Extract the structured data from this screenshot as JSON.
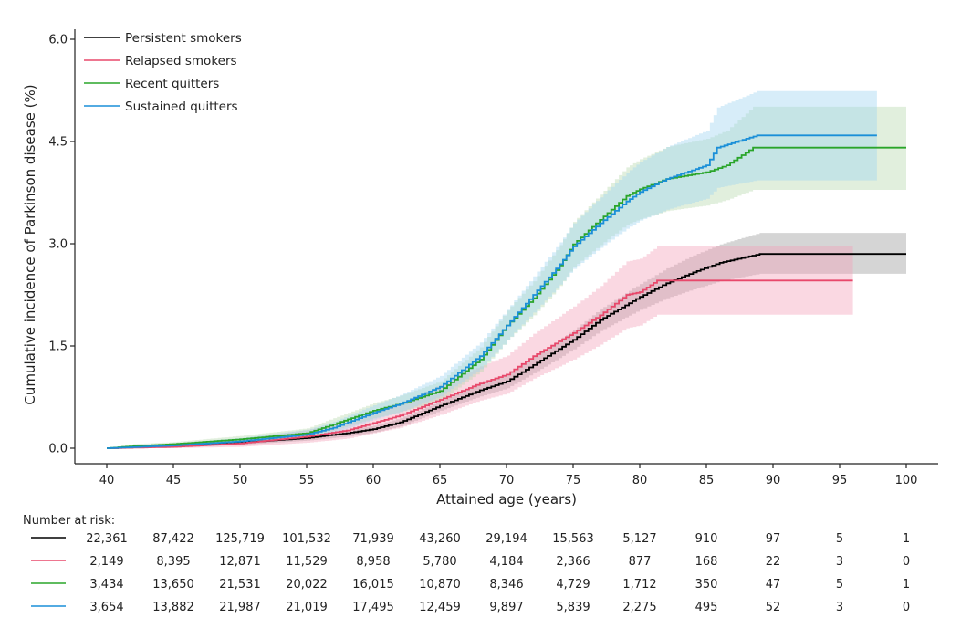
{
  "chart_data": {
    "type": "line",
    "subtype": "cumulative-incidence-step",
    "title": "",
    "xlabel": "Attained age (years)",
    "ylabel": "Cumulative incidence of Parkinson disease (%)",
    "xlim": [
      40,
      100
    ],
    "ylim": [
      0,
      6.0
    ],
    "xticks": [
      40,
      45,
      50,
      55,
      60,
      65,
      70,
      75,
      80,
      85,
      90,
      95,
      100
    ],
    "yticks": [
      0.0,
      1.5,
      3.0,
      4.5,
      6.0
    ],
    "ytick_labels": [
      "0.0",
      "1.5",
      "3.0",
      "4.5",
      "6.0"
    ],
    "grid": false,
    "legend_position": "top-left",
    "series": [
      {
        "name": "Persistent smokers",
        "color": "#000000",
        "band_color": "#9a9a9a",
        "x": [
          40,
          45,
          50,
          55,
          58,
          60,
          62,
          65,
          68,
          70,
          72,
          75,
          77,
          80,
          82,
          84,
          86,
          89,
          100
        ],
        "y": [
          0.0,
          0.03,
          0.08,
          0.15,
          0.22,
          0.28,
          0.38,
          0.62,
          0.85,
          0.98,
          1.22,
          1.59,
          1.88,
          2.22,
          2.42,
          2.58,
          2.72,
          2.85,
          2.85
        ],
        "lower": [
          0.0,
          0.01,
          0.05,
          0.11,
          0.17,
          0.23,
          0.32,
          0.55,
          0.76,
          0.88,
          1.1,
          1.45,
          1.72,
          2.03,
          2.2,
          2.33,
          2.45,
          2.56,
          2.56
        ],
        "upper": [
          0.0,
          0.05,
          0.11,
          0.19,
          0.27,
          0.33,
          0.44,
          0.69,
          0.94,
          1.08,
          1.34,
          1.73,
          2.04,
          2.41,
          2.64,
          2.83,
          2.99,
          3.16,
          3.16
        ]
      },
      {
        "name": "Relapsed smokers",
        "color": "#e8486b",
        "band_color": "#f4a3bb",
        "x": [
          40,
          45,
          50,
          55,
          58,
          60,
          62,
          65,
          68,
          70,
          72,
          75,
          77,
          79,
          80,
          81.3,
          96
        ],
        "y": [
          0.0,
          0.02,
          0.07,
          0.17,
          0.26,
          0.37,
          0.48,
          0.71,
          0.95,
          1.08,
          1.35,
          1.69,
          1.95,
          2.25,
          2.29,
          2.46,
          2.46
        ],
        "lower": [
          0.0,
          0.0,
          0.02,
          0.08,
          0.14,
          0.22,
          0.3,
          0.49,
          0.7,
          0.8,
          1.02,
          1.3,
          1.52,
          1.76,
          1.8,
          1.96,
          1.96
        ],
        "upper": [
          0.0,
          0.05,
          0.13,
          0.27,
          0.38,
          0.52,
          0.66,
          0.93,
          1.2,
          1.36,
          1.68,
          2.08,
          2.38,
          2.74,
          2.78,
          2.96,
          2.96
        ]
      },
      {
        "name": "Recent quitters",
        "color": "#2aa52a",
        "band_color": "#b7d8ad",
        "x": [
          40,
          42,
          45,
          50,
          55,
          57,
          60,
          62,
          65,
          68,
          70,
          72,
          74,
          75,
          77,
          79,
          80,
          82,
          85,
          86.5,
          88.5,
          100
        ],
        "y": [
          0.0,
          0.03,
          0.06,
          0.13,
          0.22,
          0.35,
          0.55,
          0.65,
          0.84,
          1.3,
          1.8,
          2.2,
          2.68,
          2.99,
          3.35,
          3.7,
          3.8,
          3.95,
          4.05,
          4.15,
          4.41,
          4.41
        ],
        "lower": [
          0.0,
          0.01,
          0.03,
          0.08,
          0.15,
          0.26,
          0.44,
          0.53,
          0.7,
          1.12,
          1.58,
          1.95,
          2.38,
          2.66,
          2.98,
          3.28,
          3.36,
          3.48,
          3.56,
          3.64,
          3.79,
          3.79
        ],
        "upper": [
          0.0,
          0.06,
          0.09,
          0.18,
          0.29,
          0.44,
          0.66,
          0.77,
          0.98,
          1.48,
          2.02,
          2.45,
          2.98,
          3.32,
          3.72,
          4.12,
          4.24,
          4.42,
          4.54,
          4.66,
          5.01,
          5.01
        ]
      },
      {
        "name": "Sustained quitters",
        "color": "#1a8fd8",
        "band_color": "#9fd3f0",
        "x": [
          40,
          45,
          50,
          55,
          57,
          60,
          62,
          65,
          68,
          70,
          72,
          74,
          75,
          77,
          79,
          80,
          82,
          85,
          85.8,
          88.8,
          97.8
        ],
        "y": [
          0.0,
          0.04,
          0.1,
          0.2,
          0.3,
          0.52,
          0.65,
          0.9,
          1.35,
          1.8,
          2.25,
          2.7,
          2.96,
          3.3,
          3.62,
          3.76,
          3.95,
          4.15,
          4.41,
          4.59,
          4.59
        ],
        "lower": [
          0.0,
          0.02,
          0.06,
          0.14,
          0.22,
          0.42,
          0.53,
          0.76,
          1.16,
          1.58,
          1.99,
          2.4,
          2.63,
          2.94,
          3.22,
          3.34,
          3.5,
          3.66,
          3.82,
          3.93,
          3.93
        ],
        "upper": [
          0.0,
          0.07,
          0.15,
          0.27,
          0.39,
          0.63,
          0.78,
          1.06,
          1.55,
          2.03,
          2.52,
          3.02,
          3.3,
          3.68,
          4.04,
          4.2,
          4.42,
          4.66,
          5.0,
          5.24,
          5.24
        ]
      }
    ]
  },
  "risk_table": {
    "title": "Number at risk:",
    "ages": [
      40,
      45,
      50,
      55,
      60,
      65,
      70,
      75,
      80,
      85,
      90,
      95,
      100
    ],
    "rows": [
      {
        "series": "Persistent smokers",
        "color": "#000000",
        "values": [
          "22,361",
          "87,422",
          "125,719",
          "101,532",
          "71,939",
          "43,260",
          "29,194",
          "15,563",
          "5,127",
          "910",
          "97",
          "5",
          "1"
        ]
      },
      {
        "series": "Relapsed smokers",
        "color": "#e8486b",
        "values": [
          "2,149",
          "8,395",
          "12,871",
          "11,529",
          "8,958",
          "5,780",
          "4,184",
          "2,366",
          "877",
          "168",
          "22",
          "3",
          "0"
        ]
      },
      {
        "series": "Recent quitters",
        "color": "#2aa52a",
        "values": [
          "3,434",
          "13,650",
          "21,531",
          "20,022",
          "16,015",
          "10,870",
          "8,346",
          "4,729",
          "1,712",
          "350",
          "47",
          "5",
          "1"
        ]
      },
      {
        "series": "Sustained quitters",
        "color": "#1a8fd8",
        "values": [
          "3,654",
          "13,882",
          "21,987",
          "21,019",
          "17,495",
          "12,459",
          "9,897",
          "5,839",
          "2,275",
          "495",
          "52",
          "3",
          "0"
        ]
      }
    ]
  }
}
